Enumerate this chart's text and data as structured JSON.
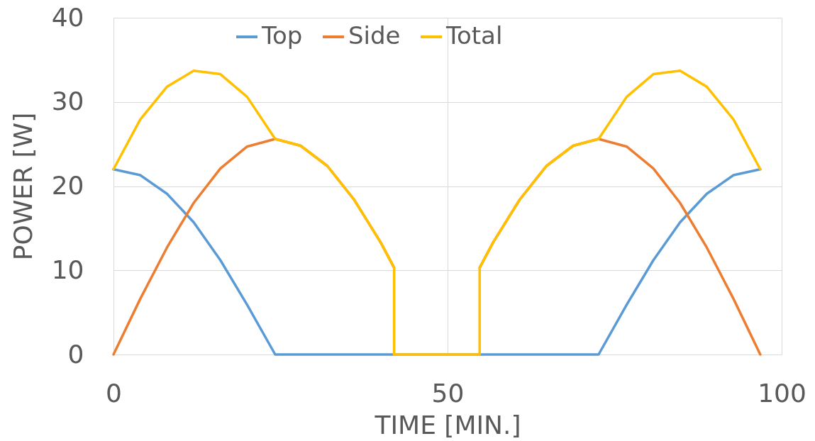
{
  "chart_data": {
    "type": "line",
    "xlabel": "TIME [MIN.]",
    "ylabel": "POWER [W]",
    "xlim": [
      0,
      100
    ],
    "xticks": [
      0,
      50,
      100
    ],
    "ylim": [
      0,
      40
    ],
    "yticks": [
      0,
      10,
      20,
      30,
      40
    ],
    "grid": true,
    "legend": "top",
    "marker": "none",
    "line_style": "solid",
    "series": [
      {
        "name": "Top",
        "color": "#5b9bd5",
        "x": [
          0,
          4,
          8,
          12,
          16,
          20,
          24.2,
          72.6,
          76.8,
          80.8,
          84.8,
          88.8,
          92.8,
          96.8
        ],
        "values": [
          22,
          21.3,
          19.1,
          15.7,
          11.2,
          5.9,
          0,
          0,
          5.9,
          11.2,
          15.7,
          19.1,
          21.3,
          22
        ]
      },
      {
        "name": "Side",
        "color": "#ed7d31",
        "x": [
          0,
          4,
          8,
          12,
          16,
          20,
          24.2,
          28,
          32,
          36,
          40,
          42,
          48.4,
          54.8,
          56.8,
          60.8,
          64.8,
          68.8,
          72.6,
          76.8,
          80.8,
          84.8,
          88.8,
          92.8,
          96.8
        ],
        "values": [
          0,
          6.6,
          12.7,
          18,
          22.1,
          24.7,
          25.6,
          24.8,
          22.4,
          18.4,
          13.3,
          10.3,
          null,
          10.3,
          13.3,
          18.4,
          22.4,
          24.8,
          25.6,
          24.7,
          22.1,
          18,
          12.7,
          6.6,
          0
        ]
      },
      {
        "name": "Total",
        "color": "#ffc000",
        "x": [
          0,
          4,
          8,
          12,
          16,
          20,
          24.2,
          28,
          32,
          36,
          40,
          42,
          42,
          54.8,
          54.8,
          56.8,
          60.8,
          64.8,
          68.8,
          72.6,
          76.8,
          80.8,
          84.8,
          88.8,
          92.8,
          96.8
        ],
        "values": [
          22,
          27.9,
          31.8,
          33.7,
          33.3,
          30.6,
          25.6,
          24.8,
          22.4,
          18.4,
          13.3,
          10.3,
          0,
          0,
          10.3,
          13.3,
          18.4,
          22.4,
          24.8,
          25.6,
          30.6,
          33.3,
          33.7,
          31.8,
          27.9,
          22
        ]
      }
    ]
  }
}
